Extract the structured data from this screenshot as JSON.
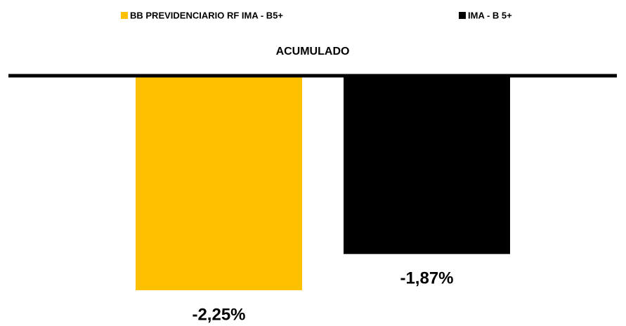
{
  "chart_data": {
    "type": "bar",
    "title": "ACUMULADO",
    "legend": "top",
    "series": [
      {
        "name": "BB PREVIDENCIARIO RF IMA - B5+",
        "color": "#ffc000",
        "values": [
          -2.25
        ],
        "value_labels": [
          "-2,25%"
        ]
      },
      {
        "name": "IMA - B 5+",
        "color": "#000000",
        "values": [
          -1.87
        ],
        "value_labels": [
          "-1,87%"
        ]
      }
    ]
  }
}
